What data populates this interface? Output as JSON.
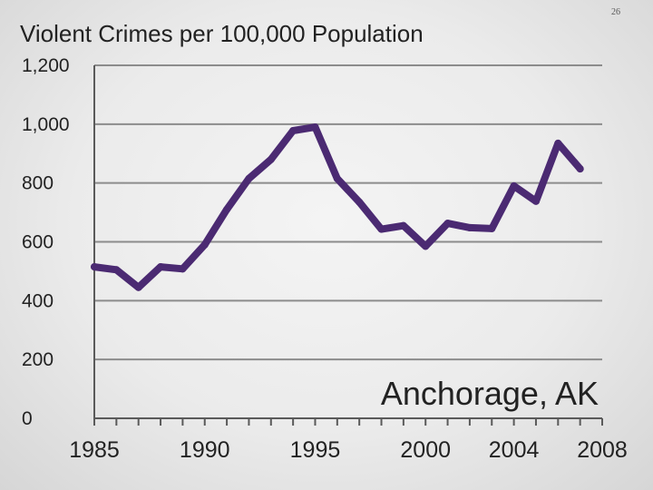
{
  "page_number": "26",
  "chart_data": {
    "type": "line",
    "title": "Violent Crimes per 100,000 Population",
    "annotation": "Anchorage, AK",
    "xlabel": "",
    "ylabel": "",
    "xlim": [
      1985,
      2008
    ],
    "ylim": [
      0,
      1200
    ],
    "x_ticks": [
      1985,
      1990,
      1995,
      2000,
      2004,
      2008
    ],
    "y_ticks": [
      0,
      200,
      400,
      600,
      800,
      1000,
      1200
    ],
    "y_tick_labels": [
      "0",
      "200",
      "400",
      "600",
      "800",
      "1,000",
      "1,200"
    ],
    "grid": true,
    "legend": "none",
    "line_color": "#4b2a72",
    "series": [
      {
        "x": [
          1985,
          1986,
          1987,
          1988,
          1989,
          1990,
          1991,
          1992,
          1993,
          1994,
          1995,
          1996,
          1997,
          1998,
          1999,
          2000,
          2001,
          2002,
          2003,
          2004,
          2005,
          2006,
          2007
        ],
        "values": [
          515,
          505,
          445,
          515,
          508,
          590,
          710,
          815,
          880,
          978,
          990,
          815,
          735,
          643,
          655,
          585,
          663,
          648,
          645,
          790,
          738,
          935,
          848
        ]
      }
    ]
  }
}
